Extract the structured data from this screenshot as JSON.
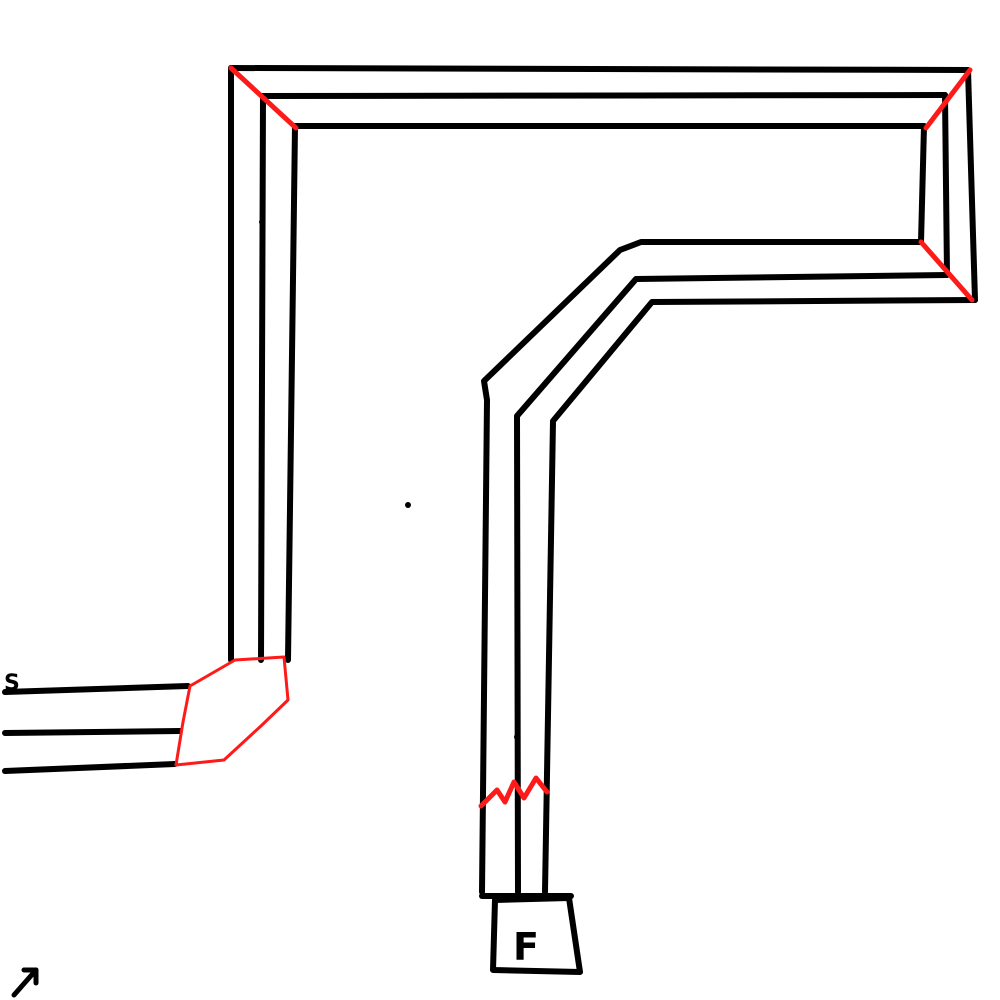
{
  "labels": {
    "start": "S",
    "finish": "F"
  },
  "colors": {
    "ink": "#000000",
    "marker": "#ff1a1a",
    "background": "#ffffff"
  }
}
